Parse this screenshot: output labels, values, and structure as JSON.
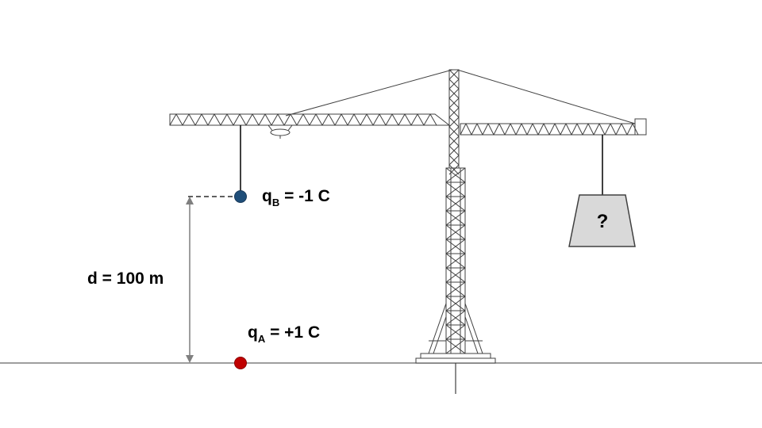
{
  "labels": {
    "charge_b": {
      "symbol": "q",
      "subscript": "B",
      "value": "= -1 C"
    },
    "charge_a": {
      "symbol": "q",
      "subscript": "A",
      "value": "= +1 C"
    },
    "distance": "d = 100 m",
    "unknown_load": "?"
  },
  "colors": {
    "charge_b": "#1f4e79",
    "charge_a": "#c00000",
    "load_fill": "#d9d9d9",
    "structure": "#404040",
    "ground": "#7f7f7f"
  }
}
